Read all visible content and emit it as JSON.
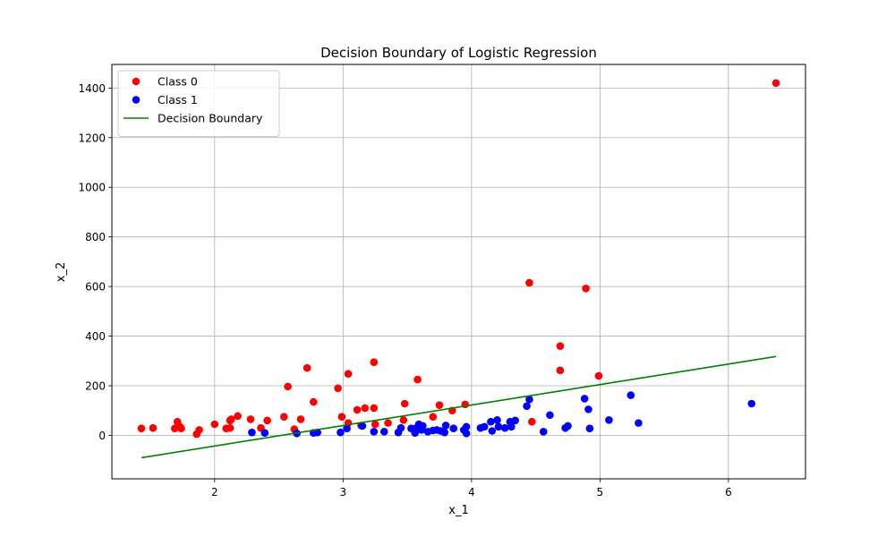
{
  "chart_data": {
    "type": "scatter",
    "title": "Decision Boundary of Logistic Regression",
    "xlabel": "x_1",
    "ylabel": "x_2",
    "xlim": [
      1.2,
      6.6
    ],
    "ylim": [
      -175,
      1495
    ],
    "xticks": [
      2,
      3,
      4,
      5,
      6
    ],
    "yticks": [
      0,
      200,
      400,
      600,
      800,
      1000,
      1200,
      1400
    ],
    "grid": true,
    "legend_position": "top-left",
    "series": [
      {
        "name": "Class 0",
        "kind": "scatter",
        "color": "#ff0000",
        "points": [
          [
            1.43,
            28
          ],
          [
            1.52,
            30
          ],
          [
            1.69,
            28
          ],
          [
            1.71,
            55
          ],
          [
            1.73,
            35
          ],
          [
            1.74,
            28
          ],
          [
            1.86,
            5
          ],
          [
            1.88,
            22
          ],
          [
            2.0,
            45
          ],
          [
            2.09,
            28
          ],
          [
            2.12,
            60
          ],
          [
            2.12,
            30
          ],
          [
            2.13,
            65
          ],
          [
            2.18,
            78
          ],
          [
            2.28,
            65
          ],
          [
            2.36,
            30
          ],
          [
            2.41,
            60
          ],
          [
            2.54,
            75
          ],
          [
            2.57,
            197
          ],
          [
            2.62,
            25
          ],
          [
            2.67,
            65
          ],
          [
            2.72,
            272
          ],
          [
            2.77,
            135
          ],
          [
            2.96,
            190
          ],
          [
            2.99,
            75
          ],
          [
            3.04,
            248
          ],
          [
            3.04,
            50
          ],
          [
            3.11,
            103
          ],
          [
            3.14,
            40
          ],
          [
            3.17,
            110
          ],
          [
            3.24,
            295
          ],
          [
            3.24,
            110
          ],
          [
            3.25,
            45
          ],
          [
            3.35,
            50
          ],
          [
            3.47,
            62
          ],
          [
            3.48,
            128
          ],
          [
            3.58,
            225
          ],
          [
            3.7,
            75
          ],
          [
            3.75,
            122
          ],
          [
            3.85,
            100
          ],
          [
            3.95,
            125
          ],
          [
            4.45,
            615
          ],
          [
            4.47,
            55
          ],
          [
            4.69,
            360
          ],
          [
            4.69,
            262
          ],
          [
            4.89,
            592
          ],
          [
            4.99,
            240
          ],
          [
            6.37,
            1420
          ]
        ]
      },
      {
        "name": "Class 1",
        "kind": "scatter",
        "color": "#0000ff",
        "points": [
          [
            2.29,
            12
          ],
          [
            2.39,
            10
          ],
          [
            2.64,
            8
          ],
          [
            2.77,
            10
          ],
          [
            2.8,
            12
          ],
          [
            2.98,
            12
          ],
          [
            3.03,
            28
          ],
          [
            3.15,
            38
          ],
          [
            3.24,
            15
          ],
          [
            3.32,
            15
          ],
          [
            3.43,
            12
          ],
          [
            3.45,
            30
          ],
          [
            3.53,
            28
          ],
          [
            3.56,
            10
          ],
          [
            3.57,
            30
          ],
          [
            3.59,
            45
          ],
          [
            3.61,
            22
          ],
          [
            3.62,
            38
          ],
          [
            3.66,
            15
          ],
          [
            3.7,
            20
          ],
          [
            3.73,
            22
          ],
          [
            3.76,
            18
          ],
          [
            3.79,
            12
          ],
          [
            3.8,
            40
          ],
          [
            3.86,
            28
          ],
          [
            3.94,
            22
          ],
          [
            3.96,
            35
          ],
          [
            3.96,
            8
          ],
          [
            4.07,
            30
          ],
          [
            4.1,
            35
          ],
          [
            4.15,
            55
          ],
          [
            4.16,
            18
          ],
          [
            4.2,
            62
          ],
          [
            4.21,
            35
          ],
          [
            4.26,
            30
          ],
          [
            4.3,
            55
          ],
          [
            4.31,
            35
          ],
          [
            4.34,
            60
          ],
          [
            4.43,
            118
          ],
          [
            4.45,
            145
          ],
          [
            4.56,
            15
          ],
          [
            4.61,
            82
          ],
          [
            4.73,
            30
          ],
          [
            4.75,
            38
          ],
          [
            4.88,
            148
          ],
          [
            4.91,
            105
          ],
          [
            4.92,
            28
          ],
          [
            5.07,
            62
          ],
          [
            5.24,
            162
          ],
          [
            5.3,
            50
          ],
          [
            6.18,
            128
          ]
        ]
      },
      {
        "name": "Decision Boundary",
        "kind": "line",
        "color": "#008000",
        "points": [
          [
            1.43,
            -90
          ],
          [
            6.37,
            318
          ]
        ]
      }
    ]
  }
}
